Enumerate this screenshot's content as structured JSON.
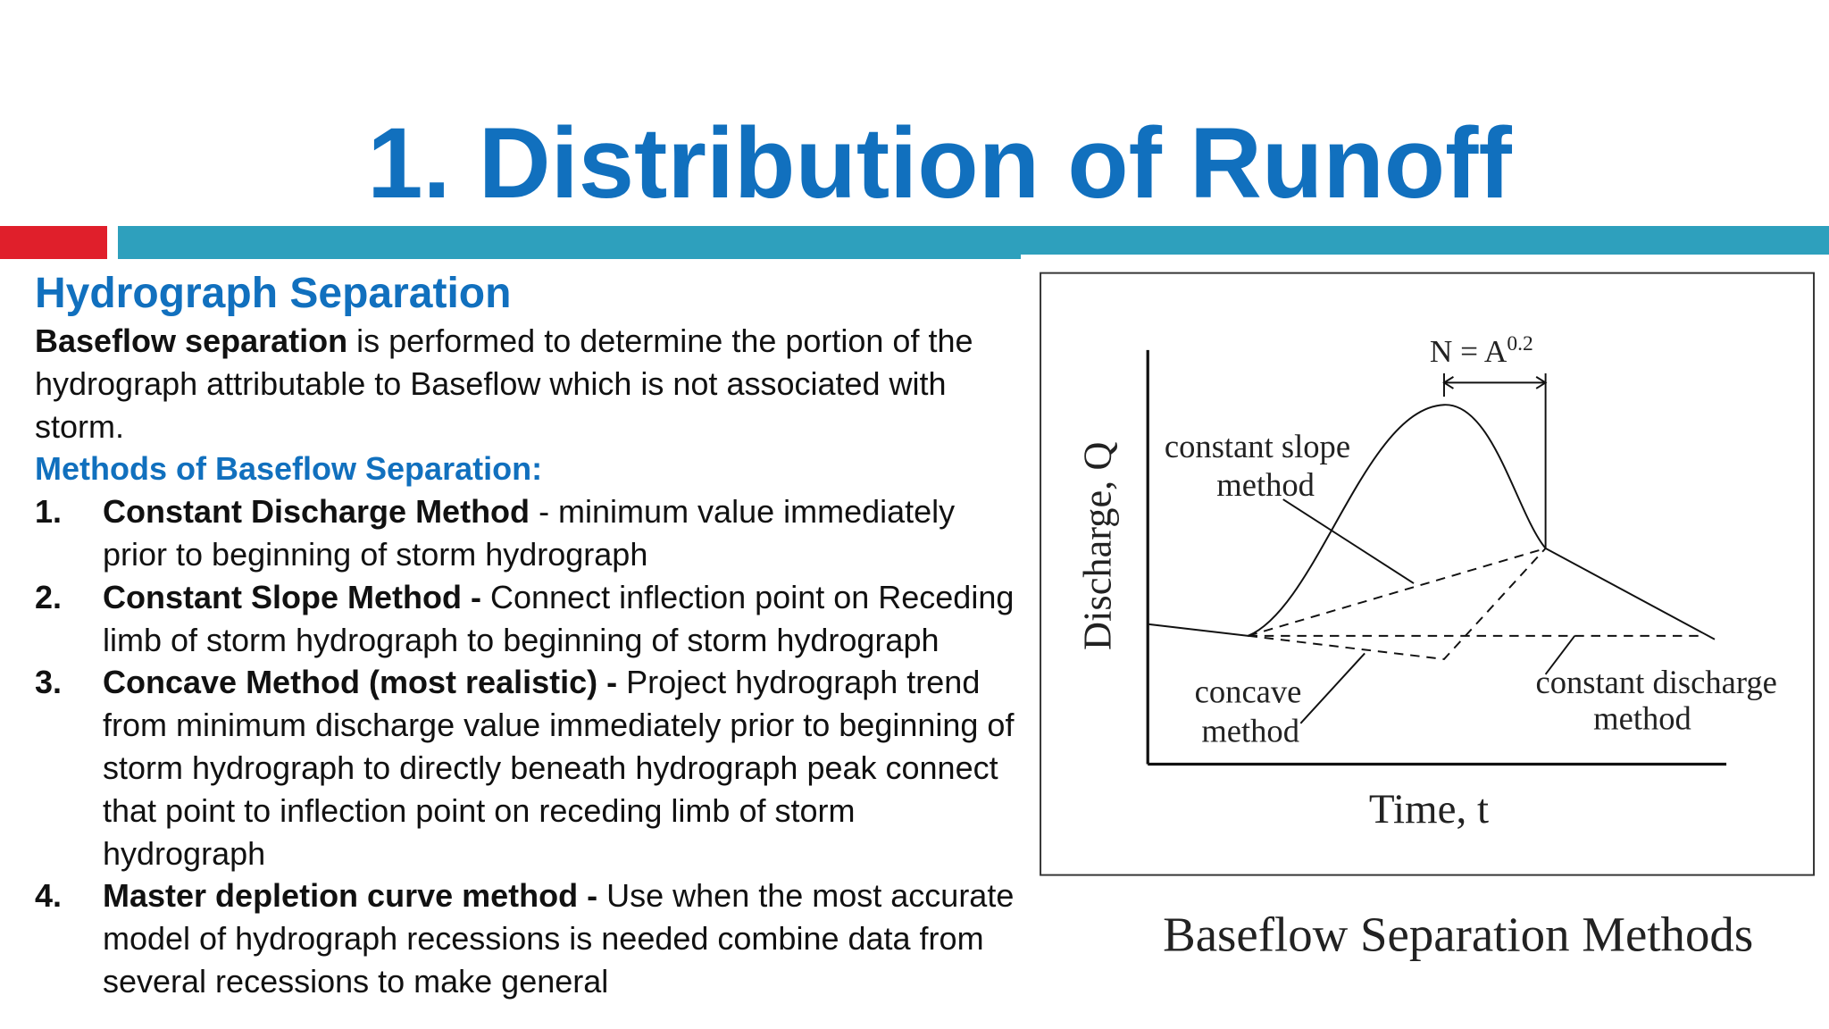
{
  "header": {
    "title": "1. Distribution of Runoff"
  },
  "section": {
    "heading": "Hydrograph Separation",
    "intro_bold": "Baseflow separation",
    "intro_text": "is performed to determine the portion of the hydrograph  attributable to Baseflow which is not associated with storm.",
    "methods_heading": "Methods of Baseflow Separation:",
    "methods": [
      {
        "number": "1.",
        "bold": "Constant Discharge Method",
        "text": "- minimum value immediately prior to beginning of storm hydrograph"
      },
      {
        "number": "2.",
        "bold": "Constant Slope Method -",
        "text": "Connect inflection point on Receding limb of storm hydrograph to beginning of storm hydrograph"
      },
      {
        "number": "3.",
        "bold": "Concave Method (most realistic) -",
        "text": "Project hydrograph trend from minimum discharge value immediately prior to beginning of storm hydrograph to directly beneath hydrograph peak connect that point to inflection point on receding limb of storm hydrograph"
      },
      {
        "number": "4.",
        "bold": "Master depletion curve method -",
        "text": "Use when the most accurate model of hydrograph recessions is needed combine data from several recessions to make general"
      }
    ]
  },
  "figure": {
    "caption": "Baseflow Separation Methods",
    "y_label": "Discharge, Q",
    "x_label": "Time, t",
    "n_label": "N = A",
    "n_exponent": "0.2",
    "label_slope": [
      "constant slope",
      "method"
    ],
    "label_concave": [
      "concave",
      "method"
    ],
    "label_discharge": [
      "constant discharge",
      "method"
    ]
  }
}
